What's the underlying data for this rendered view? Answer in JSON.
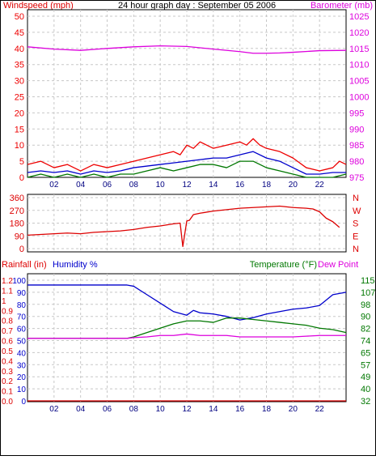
{
  "colors": {
    "wind_gust": "#ee0000",
    "wind_avg": "#0000cc",
    "wind_low": "#007700",
    "barometer": "#dd00dd",
    "direction": "#dd0000",
    "rain": "#dd0000",
    "humidity": "#0000cc",
    "temperature": "#007700",
    "dewpoint": "#dd00dd",
    "grid": "#c8c8c8"
  },
  "chart_data": [
    {
      "id": "wind_baro",
      "type": "line",
      "title": "24 hour graph day : September 05 2006",
      "left_axis_label": "Windspeed (mph)",
      "right_axis_label": "Barometer (mb)",
      "x_ticks": [
        "02",
        "04",
        "06",
        "08",
        "10",
        "12",
        "14",
        "16",
        "18",
        "20",
        "22"
      ],
      "x_range": [
        0,
        24
      ],
      "left_ticks": [
        "0",
        "5",
        "10",
        "15",
        "20",
        "25",
        "30",
        "35",
        "40",
        "45",
        "50"
      ],
      "left_range": [
        0,
        50
      ],
      "right_ticks": [
        "975",
        "980",
        "985",
        "990",
        "995",
        "1000",
        "1005",
        "1010",
        "1015",
        "1020",
        "1025"
      ],
      "right_range": [
        975,
        1025
      ],
      "grid": true,
      "series": [
        {
          "key": "gust",
          "x": [
            0,
            1,
            2,
            3,
            4,
            5,
            6,
            7,
            8,
            9,
            10,
            11,
            11.5,
            12,
            12.5,
            13,
            14,
            15,
            16,
            16.5,
            17,
            17.5,
            18,
            19,
            20,
            21,
            22,
            23,
            23.5,
            24
          ],
          "y": [
            4,
            5,
            3,
            4,
            2,
            4,
            3,
            4,
            5,
            6,
            7,
            8,
            7,
            10,
            9,
            11,
            9,
            10,
            11,
            10,
            12,
            10,
            9,
            8,
            6,
            3,
            2,
            3,
            5,
            4
          ]
        },
        {
          "key": "avg",
          "x": [
            0,
            1,
            2,
            3,
            4,
            5,
            6,
            7,
            8,
            9,
            10,
            11,
            12,
            13,
            14,
            15,
            16,
            17,
            18,
            19,
            20,
            21,
            22,
            23,
            24
          ],
          "y": [
            1.5,
            2,
            1.5,
            2,
            1,
            2,
            1.5,
            2,
            3,
            3.5,
            4,
            4.5,
            5,
            5.5,
            6,
            6,
            7,
            8,
            6,
            5,
            3,
            1,
            1,
            1.5,
            1.5
          ]
        },
        {
          "key": "low",
          "x": [
            0,
            1,
            2,
            3,
            4,
            5,
            6,
            7,
            8,
            9,
            10,
            11,
            12,
            13,
            14,
            15,
            16,
            17,
            18,
            19,
            20,
            21,
            22,
            23,
            24
          ],
          "y": [
            0,
            1,
            0,
            1,
            0,
            1,
            0,
            1,
            1,
            2,
            3,
            2,
            3,
            4,
            4,
            3,
            5,
            5,
            3,
            2,
            1,
            0,
            0,
            0,
            1
          ]
        },
        {
          "key": "barometer",
          "x": [
            0,
            2,
            4,
            6,
            8,
            10,
            12,
            14,
            16,
            17,
            18,
            19,
            20,
            22,
            24
          ],
          "y": [
            1015.5,
            1014.8,
            1014.4,
            1015.0,
            1015.5,
            1015.8,
            1015.6,
            1014.8,
            1014.0,
            1013.5,
            1013.5,
            1013.6,
            1013.8,
            1014.3,
            1014.4
          ]
        }
      ]
    },
    {
      "id": "direction",
      "type": "line",
      "left_ticks": [
        "360",
        "270",
        "180",
        "90",
        "0"
      ],
      "left_range": [
        0,
        360
      ],
      "right_ticks": [
        "N",
        "W",
        "S",
        "E",
        "N"
      ],
      "x_range": [
        0,
        24
      ],
      "grid": true,
      "series": [
        {
          "key": "direction",
          "x": [
            0,
            1,
            2,
            3,
            4,
            5,
            6,
            7,
            8,
            9,
            10,
            11,
            11.5,
            11.7,
            12,
            12.2,
            12.5,
            13,
            14,
            15,
            16,
            17,
            18,
            19,
            20,
            21,
            21.5,
            22,
            22.5,
            23,
            23.5
          ],
          "y": [
            95,
            100,
            105,
            110,
            105,
            115,
            120,
            125,
            135,
            150,
            160,
            175,
            180,
            15,
            195,
            200,
            240,
            250,
            265,
            275,
            285,
            290,
            295,
            300,
            290,
            285,
            280,
            260,
            215,
            190,
            150
          ]
        }
      ]
    },
    {
      "id": "rain_hum_temp",
      "type": "line",
      "rain_label": "Rainfall (in)",
      "humidity_label": "Humidity %",
      "temperature_label": "Temperature (°F)",
      "dewpoint_label": "Dew Point",
      "x_ticks": [
        "02",
        "04",
        "06",
        "08",
        "10",
        "12",
        "14",
        "16",
        "18",
        "20",
        "22"
      ],
      "x_range": [
        0,
        24
      ],
      "rain_ticks": [
        "1.2",
        "1.1",
        "1",
        "0.9",
        "0.8",
        "0.7",
        "0.6",
        "0.5",
        "0.4",
        "0.3",
        "0.2",
        "0.1",
        "0.0"
      ],
      "rain_range": [
        0,
        1.2
      ],
      "humidity_ticks": [
        "100",
        "90",
        "80",
        "70",
        "60",
        "50",
        "40",
        "30",
        "20",
        "10",
        "0"
      ],
      "humidity_range": [
        0,
        100
      ],
      "temperature_ticks": [
        "115",
        "107",
        "98",
        "90",
        "82",
        "74",
        "65",
        "57",
        "49",
        "40",
        "32"
      ],
      "temperature_range": [
        32,
        115
      ],
      "grid": true,
      "series": [
        {
          "key": "humidity",
          "x": [
            0,
            2,
            4,
            6,
            7.5,
            8,
            9,
            10,
            11,
            12,
            12.5,
            13,
            14,
            15,
            16,
            17,
            18,
            19,
            20,
            21,
            22,
            23,
            24
          ],
          "y": [
            96,
            96,
            96,
            96,
            96,
            95,
            88,
            81,
            74,
            71,
            75,
            73,
            72,
            70,
            67,
            69,
            72,
            74,
            76,
            77,
            79,
            88,
            90
          ]
        },
        {
          "key": "temperature",
          "x": [
            0,
            2,
            4,
            6,
            7.5,
            8,
            9,
            10,
            11,
            12,
            13,
            14,
            15,
            16,
            17,
            18,
            19,
            20,
            21,
            22,
            23,
            24
          ],
          "y": [
            75,
            75,
            75,
            75,
            75,
            76,
            79,
            82,
            85,
            87,
            87,
            86,
            89,
            89,
            88,
            87,
            86,
            85,
            84,
            82,
            81,
            79
          ]
        },
        {
          "key": "dewpoint",
          "x": [
            0,
            2,
            4,
            6,
            7.5,
            8,
            9,
            10,
            11,
            12,
            13,
            14,
            15,
            16,
            17,
            18,
            19,
            20,
            21,
            22,
            23,
            24
          ],
          "y": [
            75,
            75,
            75,
            75,
            75,
            75.5,
            76,
            77,
            77,
            78,
            77,
            77,
            77,
            76,
            76,
            76,
            76,
            76,
            76.5,
            77,
            77,
            77
          ]
        },
        {
          "key": "rain",
          "x": [
            0,
            24
          ],
          "y": [
            0,
            0
          ]
        }
      ]
    }
  ]
}
